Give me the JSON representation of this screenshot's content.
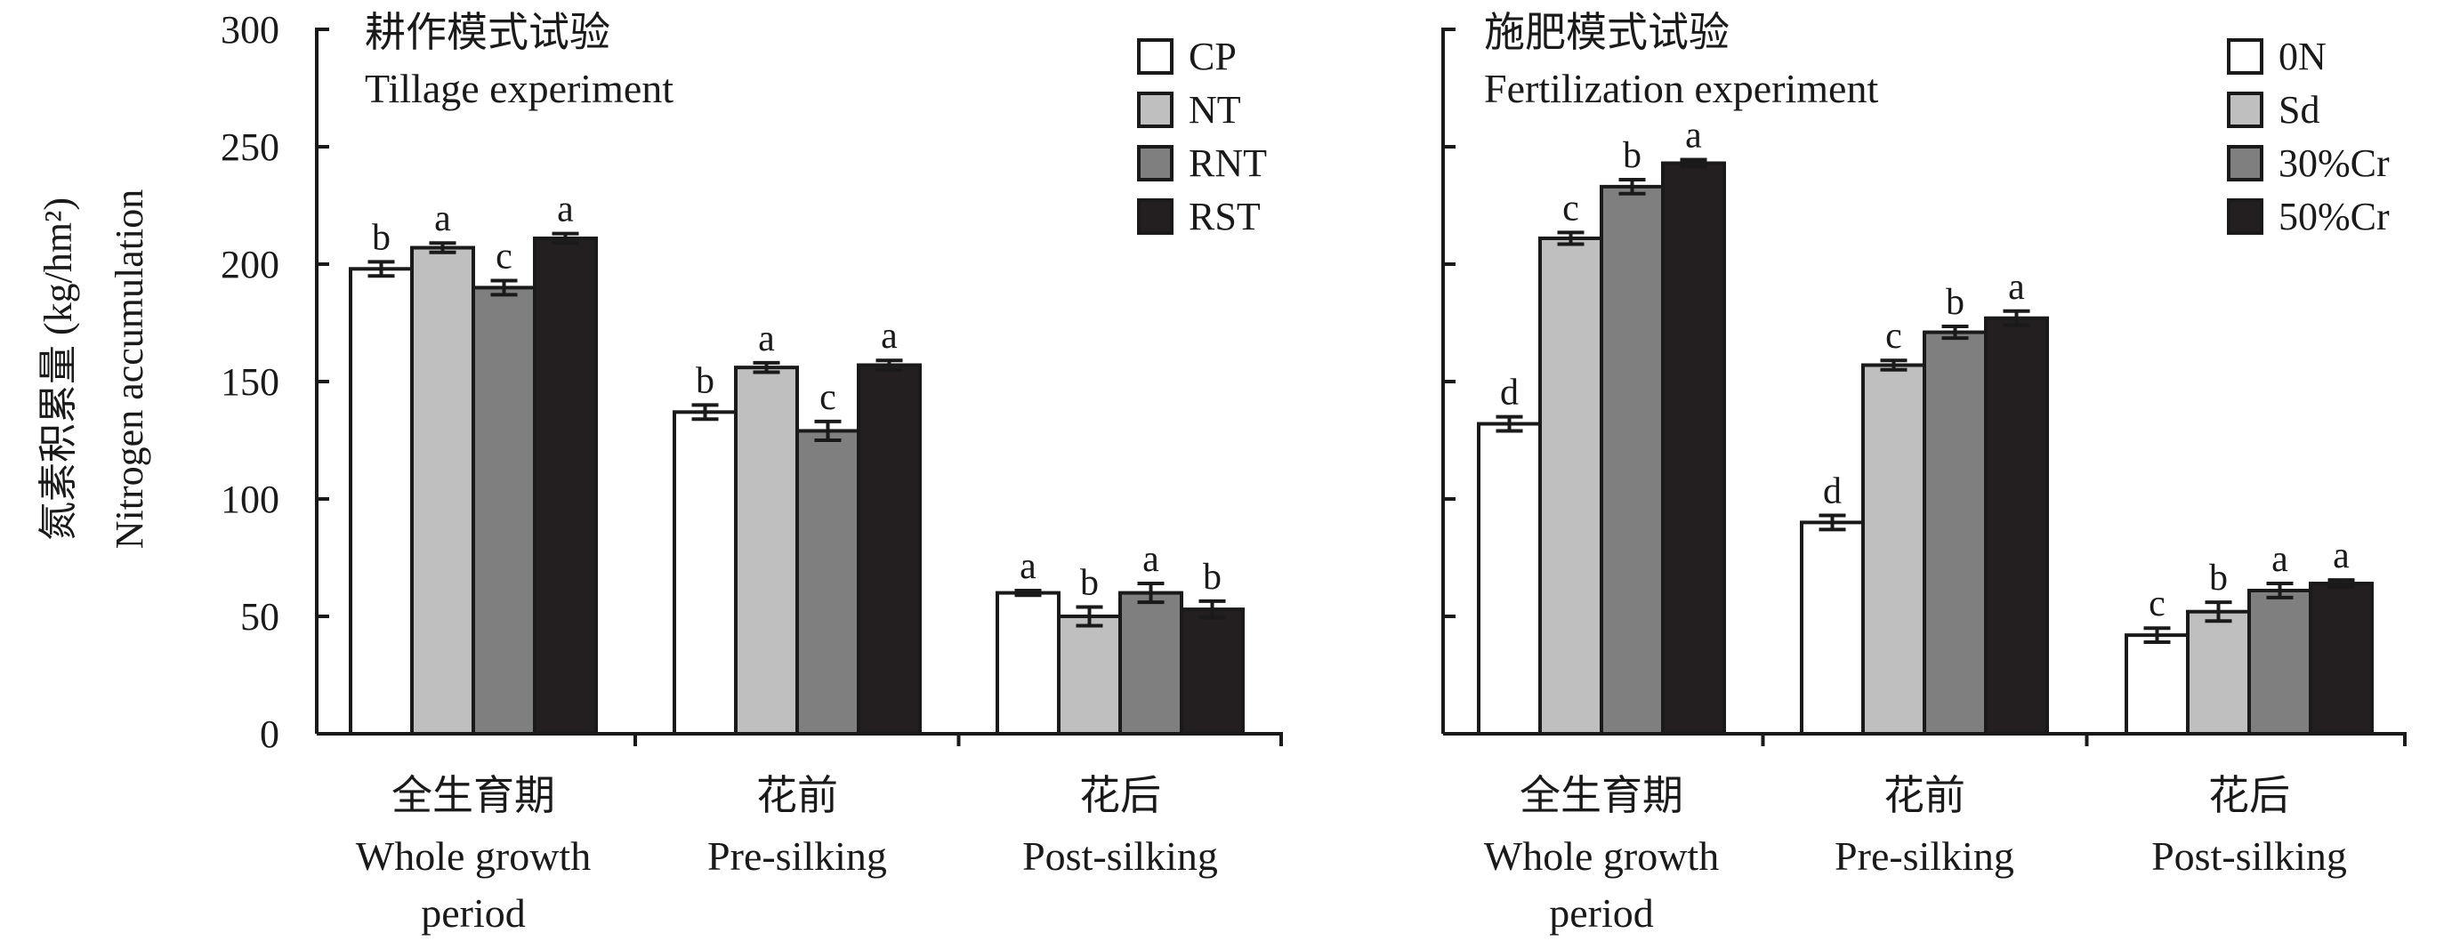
{
  "y_axis": {
    "label_cn": "氮素积累量 (kg/hm²)",
    "label_en": "Nitrogen accumulation"
  },
  "chart_data": [
    {
      "type": "bar",
      "title_cn": "耕作模式试验",
      "title_en": "Tillage experiment",
      "categories": [
        {
          "cn": "全生育期",
          "en": [
            "Whole growth",
            "period"
          ]
        },
        {
          "cn": "花前",
          "en": [
            "Pre-silking"
          ]
        },
        {
          "cn": "花后",
          "en": [
            "Post-silking"
          ]
        }
      ],
      "ylim": [
        0,
        300
      ],
      "yticks": [
        0,
        50,
        100,
        150,
        200,
        250,
        300
      ],
      "legend_position": "top-right",
      "series": [
        {
          "name": "CP",
          "color": "#ffffff",
          "values": [
            198,
            137,
            60
          ],
          "errors": [
            3,
            3,
            1
          ],
          "letters": [
            "b",
            "b",
            "a"
          ]
        },
        {
          "name": "NT",
          "color": "#bfbfbf",
          "values": [
            207,
            156,
            50
          ],
          "errors": [
            2,
            2,
            4
          ],
          "letters": [
            "a",
            "a",
            "b"
          ]
        },
        {
          "name": "RNT",
          "color": "#7f7f7f",
          "values": [
            190,
            129,
            60
          ],
          "errors": [
            3,
            4,
            4
          ],
          "letters": [
            "c",
            "c",
            "a"
          ]
        },
        {
          "name": "RST",
          "color": "#231f20",
          "values": [
            211,
            157,
            53
          ],
          "errors": [
            2,
            2,
            3.5
          ],
          "letters": [
            "a",
            "a",
            "b"
          ]
        }
      ]
    },
    {
      "type": "bar",
      "title_cn": "施肥模式试验",
      "title_en": "Fertilization experiment",
      "categories": [
        {
          "cn": "全生育期",
          "en": [
            "Whole growth",
            "period"
          ]
        },
        {
          "cn": "花前",
          "en": [
            "Pre-silking"
          ]
        },
        {
          "cn": "花后",
          "en": [
            "Post-silking"
          ]
        }
      ],
      "ylim": [
        0,
        300
      ],
      "yticks": [
        0,
        50,
        100,
        150,
        200,
        250,
        300
      ],
      "legend_position": "top-right",
      "series": [
        {
          "name": "0N",
          "color": "#ffffff",
          "values": [
            132,
            90,
            42
          ],
          "errors": [
            3,
            3,
            3
          ],
          "letters": [
            "d",
            "d",
            "c"
          ]
        },
        {
          "name": "Sd",
          "color": "#bfbfbf",
          "values": [
            211,
            157,
            52
          ],
          "errors": [
            2.5,
            2,
            4
          ],
          "letters": [
            "c",
            "c",
            "b"
          ]
        },
        {
          "name": "30%Cr",
          "color": "#7f7f7f",
          "values": [
            233,
            171,
            61
          ],
          "errors": [
            3,
            2.5,
            3
          ],
          "letters": [
            "b",
            "b",
            "a"
          ]
        },
        {
          "name": "50%Cr",
          "color": "#231f20",
          "values": [
            243,
            177,
            64
          ],
          "errors": [
            1.5,
            3,
            1.5
          ],
          "letters": [
            "a",
            "a",
            "a"
          ]
        }
      ]
    }
  ]
}
